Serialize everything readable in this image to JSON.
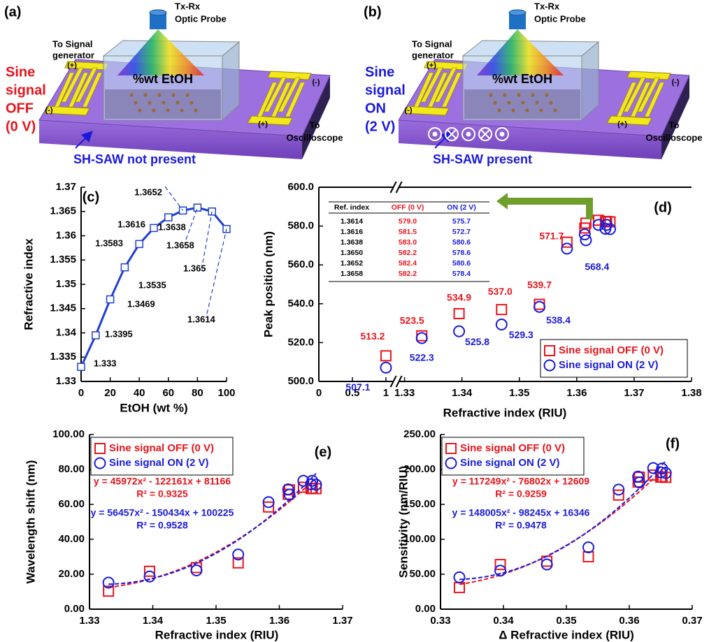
{
  "diagrams": [
    {
      "panel": "(a)",
      "probe": [
        "Tx-Rx",
        "Optic Probe"
      ],
      "signal_source": [
        "To Signal",
        "generator"
      ],
      "signal": [
        "Sine",
        "signal",
        "OFF",
        "(0 V)"
      ],
      "signal_color": "#e8141c",
      "sample": "%wt EtOH",
      "plus": "(+)",
      "minus": "(-)",
      "scope": [
        "To",
        "Oscilloscope"
      ],
      "saw": "SH-SAW not present",
      "saw_color": "#1a1adc"
    },
    {
      "panel": "(b)",
      "probe": [
        "Tx-Rx",
        "Optic Probe"
      ],
      "signal_source": [
        "To Signal",
        "generator"
      ],
      "signal": [
        "Sine",
        "signal",
        "ON",
        "(2 V)"
      ],
      "signal_color": "#1a1adc",
      "sample": "%wt EtOH",
      "plus": "(+)",
      "minus": "(-)",
      "scope": [
        "To",
        "Oscilloscope"
      ],
      "saw": "SH-SAW present",
      "saw_color": "#1a1adc"
    }
  ],
  "chart_data": [
    {
      "type": "line",
      "panel": "(c)",
      "xlabel": "EtOH (wt %)",
      "ylabel": "Refractive index",
      "x": [
        0,
        10,
        20,
        30,
        40,
        50,
        60,
        70,
        80,
        90,
        100
      ],
      "values": [
        1.333,
        1.3395,
        1.3469,
        1.3535,
        1.3583,
        1.3616,
        1.3638,
        1.3652,
        1.3658,
        1.365,
        1.3614
      ],
      "color": "#1f3fd0",
      "xlim": [
        0,
        100
      ],
      "xticks": [
        0,
        20,
        40,
        60,
        80,
        100
      ],
      "ylim": [
        1.33,
        1.37
      ],
      "yticks": [
        1.33,
        1.335,
        1.34,
        1.345,
        1.35,
        1.355,
        1.36,
        1.365,
        1.37
      ]
    },
    {
      "type": "scatter",
      "panel": "(d)",
      "xlabel": "Refractive index (RIU)",
      "ylabel": "Peak position (nm)",
      "x": [
        1,
        1.333,
        1.3395,
        1.3469,
        1.3535,
        1.3583,
        1.3614,
        1.3616,
        1.3638,
        1.365,
        1.3652,
        1.3658
      ],
      "series": [
        {
          "name": "Sine signal OFF (0 V)",
          "color": "#e8141c",
          "marker": "square",
          "values": [
            513.2,
            523.5,
            534.9,
            537.0,
            539.7,
            571.7,
            579.0,
            581.5,
            583.0,
            582.2,
            582.4,
            582.2
          ],
          "value_labels": [
            "513.2",
            "523.5",
            "534.9",
            "537.0",
            "539.7",
            "571.7",
            null,
            null,
            null,
            null,
            null,
            null
          ]
        },
        {
          "name": "Sine signal ON (2 V)",
          "color": "#1a1adc",
          "marker": "circle",
          "values": [
            507.1,
            522.3,
            525.8,
            529.3,
            538.4,
            568.4,
            575.7,
            572.7,
            580.6,
            578.6,
            580.6,
            578.4
          ],
          "value_labels": [
            "507.1",
            "522.3",
            "525.8",
            "529.3",
            "538.4",
            "568.4",
            null,
            null,
            null,
            null,
            null,
            null
          ]
        }
      ],
      "xlim": [
        0,
        1.38
      ],
      "x_break": [
        1,
        1.33
      ],
      "xticks": [
        0,
        0.5,
        1,
        1.33,
        1.34,
        1.35,
        1.36,
        1.37,
        1.38
      ],
      "ylim": [
        500,
        600
      ],
      "yticks": [
        {
          "value": 500,
          "label": "500.0"
        },
        {
          "value": 520,
          "label": "520.0"
        },
        {
          "value": 540,
          "label": "540.0"
        },
        {
          "value": 560,
          "label": "560.0"
        },
        {
          "value": 580,
          "label": "580.0"
        },
        {
          "value": 600,
          "label": "600.0"
        }
      ],
      "legend": "lower right",
      "table": {
        "columns": [
          "Ref. index",
          "OFF (0 V)",
          "ON (2 V)"
        ],
        "rows": [
          [
            "1.3614",
            "579.0",
            "575.7"
          ],
          [
            "1.3616",
            "581.5",
            "572.7"
          ],
          [
            "1.3638",
            "583.0",
            "580.6"
          ],
          [
            "1.3650",
            "582.2",
            "578.6"
          ],
          [
            "1.3652",
            "582.4",
            "580.6"
          ],
          [
            "1.3658",
            "582.2",
            "578.4"
          ]
        ]
      }
    },
    {
      "type": "scatter",
      "panel": "(e)",
      "xlabel": "Refractive index (RIU)",
      "ylabel": "Wavelength shift (nm)",
      "x": [
        1.333,
        1.3395,
        1.3469,
        1.3535,
        1.3583,
        1.3614,
        1.3616,
        1.3638,
        1.365,
        1.3652,
        1.3658
      ],
      "series": [
        {
          "name": "Sine signal OFF (0 V)",
          "color": "#e8141c",
          "marker": "square",
          "values": [
            10.3,
            21.7,
            23.8,
            26.5,
            58.5,
            65.8,
            68.3,
            69.8,
            69.0,
            69.2,
            69.0
          ],
          "fit": {
            "coefficients": [
              45972,
              -122161,
              81166
            ],
            "equation": "y = 45972x² - 122161x + 81166",
            "r2": "R² = 0.9325"
          }
        },
        {
          "name": "Sine signal ON (2 V)",
          "color": "#1a1adc",
          "marker": "circle",
          "values": [
            15.2,
            18.7,
            22.2,
            31.3,
            61.3,
            68.6,
            65.6,
            73.5,
            71.5,
            73.5,
            71.3
          ],
          "fit": {
            "coefficients": [
              56457,
              -150434,
              100225
            ],
            "equation": "y = 56457x² - 150434x + 100225",
            "r2": "R² = 0.9528"
          }
        }
      ],
      "xlim": [
        1.33,
        1.37
      ],
      "xticks": [
        1.33,
        1.34,
        1.35,
        1.36,
        1.37
      ],
      "ylim": [
        0,
        100
      ],
      "yticks": [
        {
          "value": 0,
          "label": "0.00"
        },
        {
          "value": 20,
          "label": "20.00"
        },
        {
          "value": 40,
          "label": "40.00"
        },
        {
          "value": 60,
          "label": "60.00"
        },
        {
          "value": 80,
          "label": "80.00"
        },
        {
          "value": 100,
          "label": "100.00"
        }
      ],
      "legend": "upper left"
    },
    {
      "type": "scatter",
      "panel": "(f)",
      "xlabel": "Δ Refractive index (RIU)",
      "ylabel": "Sensitivity (nm/RIU)",
      "x": [
        0.333,
        0.3395,
        0.3469,
        0.3535,
        0.3583,
        0.3614,
        0.3616,
        0.3638,
        0.365,
        0.3652,
        0.3658
      ],
      "series": [
        {
          "name": "Sine signal OFF (0 V)",
          "color": "#e8141c",
          "marker": "square",
          "values": [
            30.9,
            63.9,
            68.6,
            75.0,
            163.3,
            182.1,
            188.9,
            191.9,
            189.0,
            189.5,
            188.6
          ],
          "fit": {
            "coefficients": [
              117249,
              -76802,
              12609
            ],
            "equation": "y = 117249x² - 76802x + 12609",
            "r2": "R² = 0.9259"
          }
        },
        {
          "name": "Sine signal ON (2 V)",
          "color": "#1a1adc",
          "marker": "circle",
          "values": [
            45.6,
            55.1,
            64.0,
            88.5,
            171.1,
            189.8,
            181.4,
            202.0,
            195.9,
            201.3,
            194.9
          ],
          "fit": {
            "coefficients": [
              148005,
              -98245,
              16346
            ],
            "equation": "y = 148005x² - 98245x + 16346",
            "r2": "R² = 0.9478"
          }
        }
      ],
      "xlim": [
        0.33,
        0.37
      ],
      "xticks": [
        0.33,
        0.34,
        0.35,
        0.36,
        0.37
      ],
      "ylim": [
        0,
        250
      ],
      "yticks": [
        {
          "value": 0,
          "label": "0.00"
        },
        {
          "value": 50,
          "label": "50.00"
        },
        {
          "value": 100,
          "label": "100.00"
        },
        {
          "value": 150,
          "label": "150.00"
        },
        {
          "value": 200,
          "label": "200.00"
        },
        {
          "value": 250,
          "label": "250.00"
        }
      ],
      "legend": "upper left"
    }
  ]
}
